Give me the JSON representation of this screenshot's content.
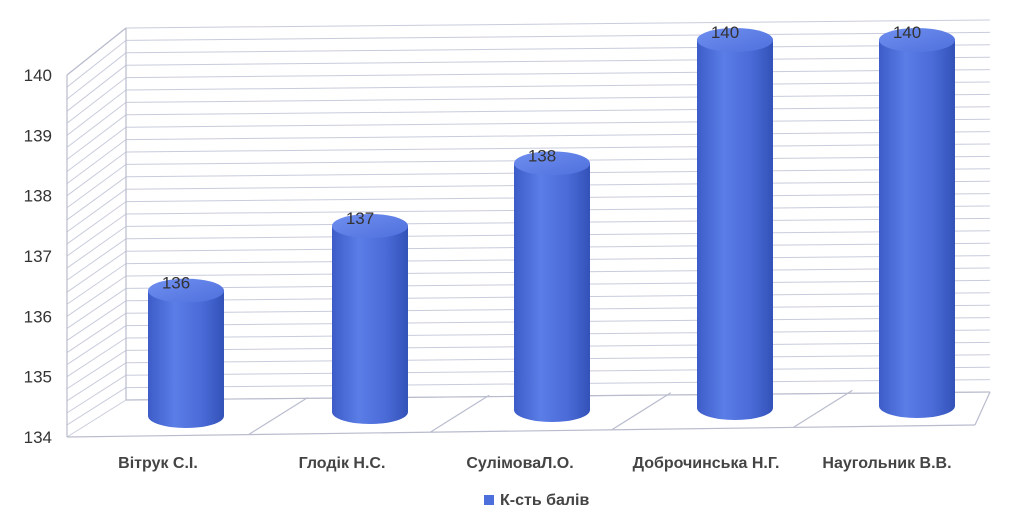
{
  "chart_data": {
    "type": "bar",
    "style": "3d-cylinder",
    "categories": [
      "Вітрук С.І.",
      "Глодік Н.С.",
      "СулімоваЛ.О.",
      "Доброчинська Н.Г.",
      "Наугольник В.В."
    ],
    "series": [
      {
        "name": "К-сть балів",
        "values": [
          136,
          137,
          138,
          140,
          140
        ],
        "color": "#4d6fdc"
      }
    ],
    "y_ticks": [
      "134",
      "135",
      "136",
      "137",
      "138",
      "139",
      "140"
    ],
    "data_labels": [
      "136",
      "137",
      "138",
      "140",
      "140"
    ],
    "ylim": [
      134,
      140
    ],
    "grid": true,
    "legend": "bottom",
    "title": "",
    "xlabel": "",
    "ylabel": ""
  }
}
